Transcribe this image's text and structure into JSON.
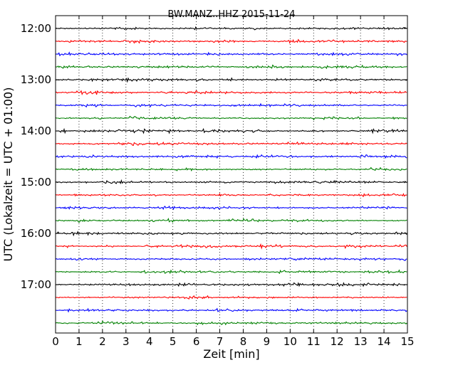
{
  "chart_data": {
    "type": "line",
    "title": "BW.MANZ..HHZ 2015-11-24",
    "xlabel": "Zeit  [min]",
    "ylabel": "UTC (Lokalzeit = UTC + 01:00)",
    "xlim": [
      0,
      15
    ],
    "x_ticks": [
      "0",
      "1",
      "2",
      "3",
      "4",
      "5",
      "6",
      "7",
      "8",
      "9",
      "10",
      "11",
      "12",
      "13",
      "14",
      "15"
    ],
    "y_ticks": [
      "12:00",
      "13:00",
      "14:00",
      "15:00",
      "16:00",
      "17:00"
    ],
    "grid": "vertical-dotted",
    "trace_colors": [
      "#000000",
      "#ff0000",
      "#0000ff",
      "#008000"
    ],
    "traces": [
      "12:00",
      "12:15",
      "12:30",
      "12:45",
      "13:00",
      "13:15",
      "13:30",
      "13:45",
      "14:00",
      "14:15",
      "14:30",
      "14:45",
      "15:00",
      "15:15",
      "15:30",
      "15:45",
      "16:00",
      "16:15",
      "16:30",
      "16:45",
      "17:00",
      "17:15",
      "17:30",
      "17:45"
    ]
  }
}
